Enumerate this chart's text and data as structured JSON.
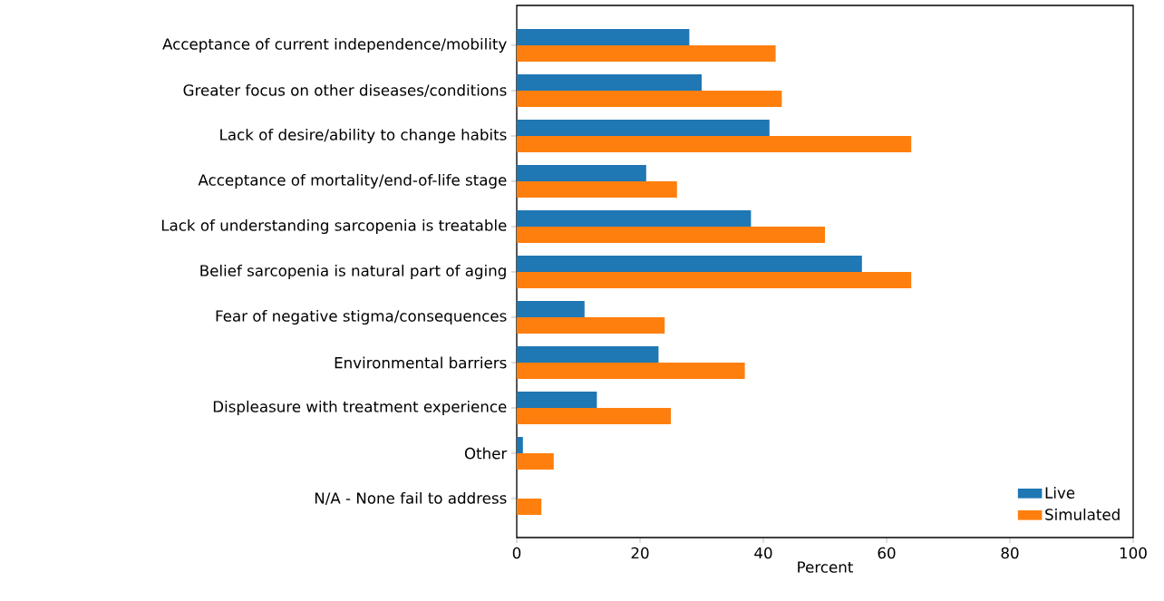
{
  "chart_data": {
    "type": "bar",
    "orientation": "horizontal",
    "xlabel": "Percent",
    "categories": [
      "Acceptance of current independence/mobility",
      "Greater focus on other diseases/conditions",
      "Lack of desire/ability to change habits",
      "Acceptance of mortality/end-of-life stage",
      "Lack of understanding sarcopenia is treatable",
      "Belief sarcopenia is natural part of aging",
      "Fear of negative stigma/consequences",
      "Environmental barriers",
      "Displeasure with treatment experience",
      "Other",
      "N/A - None fail to address"
    ],
    "series": [
      {
        "name": "Live",
        "color": "#1f77b4",
        "values": [
          28,
          30,
          41,
          21,
          38,
          56,
          11,
          23,
          13,
          1,
          0
        ]
      },
      {
        "name": "Simulated",
        "color": "#ff7f0e",
        "values": [
          42,
          43,
          64,
          26,
          50,
          64,
          24,
          37,
          25,
          6,
          4
        ]
      }
    ],
    "xlim": [
      0,
      100
    ],
    "xticks": [
      0,
      20,
      40,
      60,
      80,
      100
    ],
    "legend": "bottom right"
  }
}
